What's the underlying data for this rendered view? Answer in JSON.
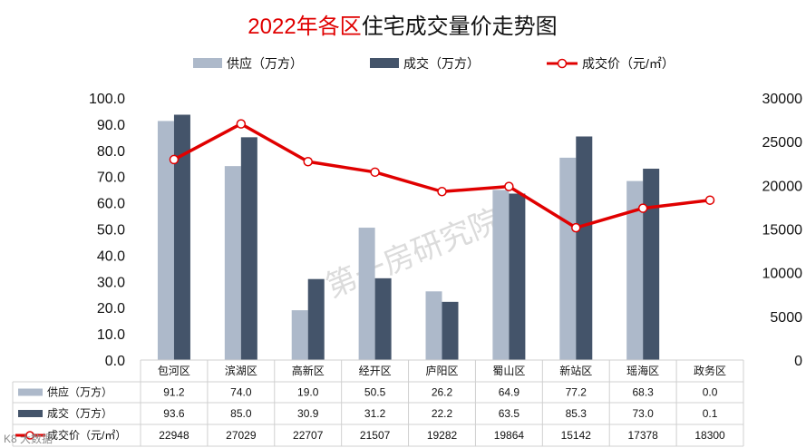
{
  "page": {
    "title_year": "2022年各区",
    "title_rest": "住宅成交量价走势图",
    "watermark": "第一房研究院",
    "corner_brand": "K8 大数据"
  },
  "colors": {
    "supply": "#adb9ca",
    "deal": "#44546a",
    "price": "#e00000",
    "title_accent": "#e00000"
  },
  "chart_data": {
    "type": "bar",
    "title": "2022年各区住宅成交量价走势图",
    "categories": [
      "包河区",
      "滨湖区",
      "高新区",
      "经开区",
      "庐阳区",
      "蜀山区",
      "新站区",
      "瑶海区",
      "政务区"
    ],
    "series": [
      {
        "name": "供应（万方）",
        "type": "bar",
        "axis": "left",
        "values": [
          91.2,
          74.0,
          19.0,
          50.5,
          26.2,
          64.9,
          77.2,
          68.3,
          0.0
        ],
        "labels": [
          "91.2",
          "74.0",
          "19.0",
          "50.5",
          "26.2",
          "64.9",
          "77.2",
          "68.3",
          "0.0"
        ]
      },
      {
        "name": "成交（万方）",
        "type": "bar",
        "axis": "left",
        "values": [
          93.6,
          85.0,
          30.9,
          31.2,
          22.2,
          63.5,
          85.3,
          73.0,
          0.1
        ],
        "labels": [
          "93.6",
          "85.0",
          "30.9",
          "31.2",
          "22.2",
          "63.5",
          "85.3",
          "73.0",
          "0.1"
        ]
      },
      {
        "name": "成交价（元/㎡）",
        "type": "line",
        "axis": "right",
        "values": [
          22948,
          27029,
          22707,
          21507,
          19282,
          19864,
          15142,
          17378,
          18300
        ],
        "labels": [
          "22948",
          "27029",
          "22707",
          "21507",
          "19282",
          "19864",
          "15142",
          "17378",
          "18300"
        ]
      }
    ],
    "left_axis": {
      "ylim": [
        0,
        100
      ],
      "ticks": [
        "0.0",
        "10.0",
        "20.0",
        "30.0",
        "40.0",
        "50.0",
        "60.0",
        "70.0",
        "80.0",
        "90.0",
        "100.0"
      ]
    },
    "right_axis": {
      "ylim": [
        0,
        30000
      ],
      "ticks": [
        "0",
        "5000",
        "10000",
        "15000",
        "20000",
        "25000",
        "30000"
      ]
    },
    "legend_position": "top",
    "grid": false,
    "data_table": true
  }
}
